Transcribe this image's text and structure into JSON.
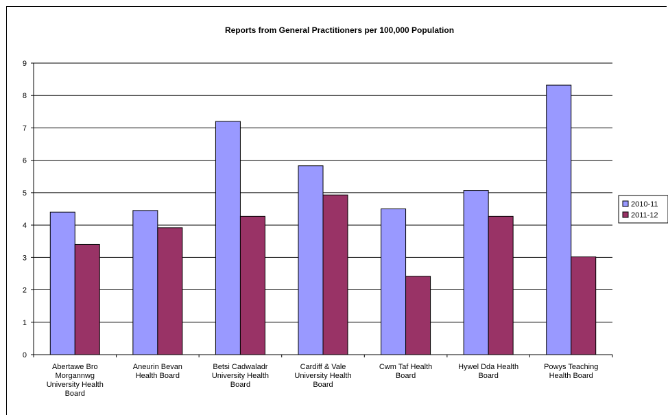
{
  "chart_data": {
    "type": "bar",
    "title": "Reports from General Practitioners per 100,000 Population",
    "xlabel": "",
    "ylabel": "",
    "ylim": [
      0,
      9
    ],
    "yticks": [
      0,
      1,
      2,
      3,
      4,
      5,
      6,
      7,
      8,
      9
    ],
    "grid": true,
    "legend_position": "right",
    "categories": [
      [
        "Abertawe Bro",
        "Morgannwg",
        "University Health",
        "Board"
      ],
      [
        "Aneurin Bevan",
        "Health Board"
      ],
      [
        "Betsi Cadwaladr",
        "University Health",
        "Board"
      ],
      [
        "Cardiff & Vale",
        "University Health",
        "Board"
      ],
      [
        "Cwm Taf Health",
        "Board"
      ],
      [
        "Hywel Dda Health",
        "Board"
      ],
      [
        "Powys Teaching",
        "Health Board"
      ]
    ],
    "series": [
      {
        "name": "2010-11",
        "color": "#9999ff",
        "values": [
          4.4,
          4.45,
          7.2,
          5.83,
          4.5,
          5.07,
          8.32
        ]
      },
      {
        "name": "2011-12",
        "color": "#993366",
        "values": [
          3.4,
          3.92,
          4.27,
          4.93,
          2.42,
          4.27,
          3.02
        ]
      }
    ]
  }
}
